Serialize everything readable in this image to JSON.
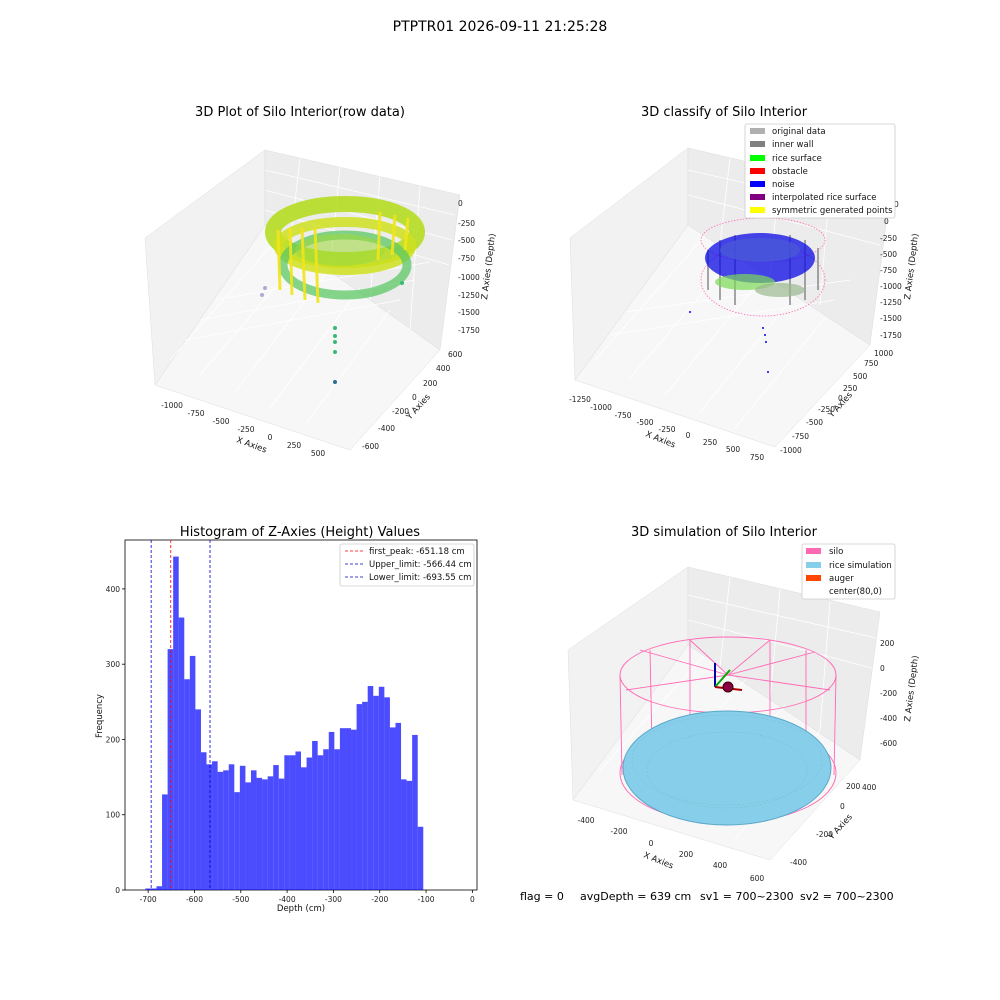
{
  "figure": {
    "title": "PTPTR01 2026-09-11 21:25:28"
  },
  "panels": {
    "raw": {
      "title": "3D Plot of Silo Interior(row data)",
      "xlabel": "X Axies",
      "ylabel": "Y Axies",
      "zlabel": "Z Axies (Depth)",
      "xticks": [
        "-1000",
        "-750",
        "-500",
        "-250",
        "0",
        "250",
        "500"
      ],
      "yticks": [
        "-600",
        "-400",
        "-200",
        "0",
        "200",
        "400",
        "600"
      ],
      "zticks": [
        "0",
        "-250",
        "-500",
        "-750",
        "-1000",
        "-1250",
        "-1500",
        "-1750"
      ]
    },
    "classify": {
      "title": "3D classify of Silo Interior",
      "xlabel": "X Axies",
      "ylabel": "Y Axies",
      "zlabel": "Z Axies (Depth)",
      "xticks": [
        "-1250",
        "-1000",
        "-750",
        "-500",
        "-250",
        "0",
        "250",
        "500",
        "750"
      ],
      "yticks": [
        "-1000",
        "-750",
        "-500",
        "-250",
        "0",
        "250",
        "500",
        "750",
        "1000"
      ],
      "zticks": [
        "0",
        "-250",
        "-500",
        "-750",
        "-1000",
        "-1250",
        "-1500",
        "-1750"
      ],
      "z_extra_tick": "0",
      "legend": [
        {
          "label": "original data",
          "color": "#b0b0b0"
        },
        {
          "label": "inner wall",
          "color": "#808080"
        },
        {
          "label": "rice surface",
          "color": "#00ff00"
        },
        {
          "label": "obstacle",
          "color": "#ff0000"
        },
        {
          "label": "noise",
          "color": "#0000ff"
        },
        {
          "label": "interpolated rice surface",
          "color": "#800080"
        },
        {
          "label": "symmetric generated points",
          "color": "#ffff00"
        }
      ]
    },
    "simulation": {
      "title": "3D simulation of Silo Interior",
      "xlabel": "X Axies",
      "ylabel": "Y Axies",
      "zlabel": "Z Axies (Depth)",
      "xticks": [
        "-400",
        "-200",
        "0",
        "200",
        "400",
        "600"
      ],
      "yticks": [
        "-400",
        "-200",
        "0",
        "200",
        "400"
      ],
      "zticks": [
        "200",
        "0",
        "-200",
        "-400",
        "-600"
      ],
      "legend": [
        {
          "label": "silo",
          "color": "#ff69b4"
        },
        {
          "label": "rice simulation",
          "color": "#87ceeb"
        },
        {
          "label": "auger",
          "color": "#ff4500"
        },
        {
          "label": "center(80,0)",
          "color": "#ffffff"
        }
      ]
    }
  },
  "chart_data": {
    "type": "bar",
    "title": "Histogram of Z-Axies (Height) Values",
    "xlabel": "Depth (cm)",
    "ylabel": "Frequency",
    "xlim": [
      -750,
      10
    ],
    "ylim": [
      0,
      465
    ],
    "xticks": [
      -700,
      -600,
      -500,
      -400,
      -300,
      -200,
      -100,
      0
    ],
    "yticks": [
      0,
      100,
      200,
      300,
      400
    ],
    "bar_color": "#0000ff",
    "bin_edges_start": -706,
    "bin_width": 12,
    "values": [
      2,
      2,
      5,
      127,
      320,
      443,
      362,
      280,
      311,
      240,
      183,
      167,
      171,
      157,
      159,
      167,
      130,
      165,
      143,
      159,
      149,
      147,
      151,
      166,
      148,
      179,
      179,
      184,
      163,
      176,
      198,
      179,
      187,
      210,
      187,
      215,
      215,
      213,
      247,
      250,
      271,
      258,
      270,
      256,
      216,
      222,
      147,
      145,
      206,
      84
    ],
    "lines": [
      {
        "label": "first_peak: -651.18 cm",
        "x": -651.18,
        "color": "#ff0000"
      },
      {
        "label": "Upper_limit: -566.44 cm",
        "x": -566.44,
        "color": "#0000cc"
      },
      {
        "label": "Lower_limit: -693.55 cm",
        "x": -693.55,
        "color": "#0000cc"
      }
    ],
    "legend_position": "top-right"
  },
  "status": {
    "flag": "flag = 0",
    "avg": "avgDepth = 639 cm",
    "sv1": "sv1 = 700~2300",
    "sv2": "sv2 = 700~2300"
  }
}
